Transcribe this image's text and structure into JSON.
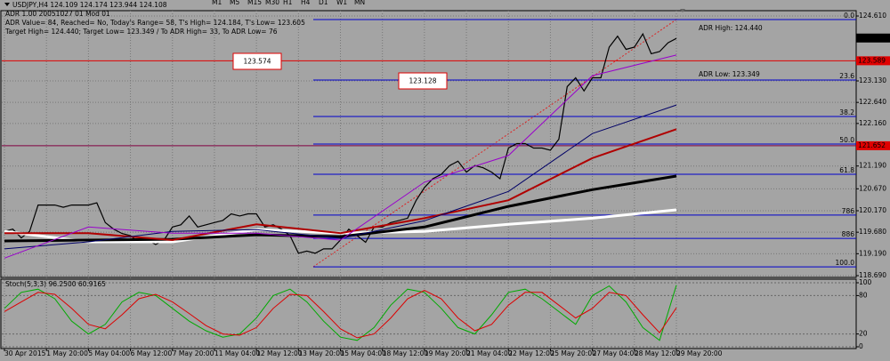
{
  "toolbar": [
    "M1",
    "M5",
    "M15",
    "M30",
    "H1",
    "H4",
    "D1",
    "W1",
    "MN"
  ],
  "chart_data": [
    {
      "type": "line",
      "title": "USDJPY,H4  124.109 124.174 123.944 124.108",
      "annotations": [
        "ADR 1.00 20051027 01 Mod 01",
        "ADR Value= 84, Reached= No, Today's Range= 58, T's High= 124.184, T's Low= 123.605",
        "Target High= 124.440; Target Low= 123.349 / To ADR High= 33, To ADR Low= 76"
      ],
      "adr_labels": [
        "ADR High: 124.440",
        "ADR Low: 123.349"
      ],
      "xlim": [
        0,
        80
      ],
      "xticks": [
        {
          "value": 0,
          "label": "30 Apr 2015"
        },
        {
          "value": 5,
          "label": "1 May 20:00"
        },
        {
          "value": 10,
          "label": "5 May 04:00"
        },
        {
          "value": 15,
          "label": "6 May 12:00"
        },
        {
          "value": 20,
          "label": "7 May 20:00"
        },
        {
          "value": 25,
          "label": "11 May 04:00"
        },
        {
          "value": 30,
          "label": "12 May 12:00"
        },
        {
          "value": 35,
          "label": "13 May 20:00"
        },
        {
          "value": 40,
          "label": "15 May 04:00"
        },
        {
          "value": 45,
          "label": "18 May 12:00"
        },
        {
          "value": 50,
          "label": "19 May 20:00"
        },
        {
          "value": 55,
          "label": "21 May 04:00"
        },
        {
          "value": 60,
          "label": "22 May 12:00"
        },
        {
          "value": 65,
          "label": "25 May 20:00"
        },
        {
          "value": 70,
          "label": "27 May 04:00"
        },
        {
          "value": 75,
          "label": "28 May 12:00"
        },
        {
          "value": 80,
          "label": "29 May 20:00"
        }
      ],
      "ylim": [
        118.69,
        124.61
      ],
      "yticks": [
        {
          "value": 124.61,
          "label": "124.610"
        },
        {
          "value": 123.13,
          "label": "123.130"
        },
        {
          "value": 122.64,
          "label": "122.640"
        },
        {
          "value": 122.16,
          "label": "122.160"
        },
        {
          "value": 121.19,
          "label": "121.190"
        },
        {
          "value": 120.67,
          "label": "120.670"
        },
        {
          "value": 120.17,
          "label": "120.170"
        },
        {
          "value": 119.68,
          "label": "119.680"
        },
        {
          "value": 119.19,
          "label": "119.190"
        },
        {
          "value": 118.69,
          "label": "118.690"
        }
      ],
      "grid": true,
      "series": [
        {
          "color": "#000000",
          "width": 1.2,
          "x": [
            0,
            1,
            2,
            3,
            4,
            5,
            6,
            7,
            8,
            9,
            10,
            11,
            12,
            13,
            14,
            15,
            16,
            17,
            18,
            19,
            20,
            21,
            22,
            23,
            24,
            25,
            26,
            27,
            28,
            29,
            30,
            31,
            32,
            33,
            34,
            35,
            36,
            37,
            38,
            39,
            40,
            41,
            42,
            43,
            44,
            45,
            46,
            47,
            48,
            49,
            50,
            51,
            52,
            53,
            54,
            55,
            56,
            57,
            58,
            59,
            60,
            61,
            62,
            63,
            64,
            65,
            66,
            67,
            68,
            69,
            70,
            71,
            72,
            73,
            74,
            75,
            76,
            77,
            78,
            79,
            80
          ],
          "values": [
            119.7,
            119.75,
            119.55,
            119.7,
            120.3,
            120.3,
            120.3,
            120.25,
            120.3,
            120.3,
            120.3,
            120.35,
            119.9,
            119.75,
            119.65,
            119.6,
            119.45,
            119.5,
            119.4,
            119.5,
            119.8,
            119.85,
            120.05,
            119.8,
            119.85,
            119.9,
            119.95,
            120.1,
            120.05,
            120.1,
            120.1,
            119.8,
            119.85,
            119.75,
            119.6,
            119.2,
            119.25,
            119.2,
            119.3,
            119.3,
            119.5,
            119.75,
            119.6,
            119.45,
            119.8,
            119.8,
            119.9,
            119.95,
            120.0,
            120.4,
            120.7,
            120.9,
            121.0,
            121.2,
            121.3,
            121.05,
            121.2,
            121.15,
            121.05,
            120.9,
            121.6,
            121.7,
            121.7,
            121.6,
            121.6,
            121.55,
            121.8,
            123.0,
            123.2,
            122.9,
            123.2,
            123.2,
            123.9,
            124.15,
            123.85,
            123.9,
            124.2,
            123.75,
            123.8,
            124.0,
            124.1
          ]
        },
        {
          "color": "#ffffff",
          "width": 3,
          "x": [
            0,
            10,
            20,
            30,
            40,
            50,
            60,
            70,
            80
          ],
          "values": [
            119.7,
            119.46,
            119.46,
            119.74,
            119.66,
            119.7,
            119.86,
            120.0,
            120.19
          ]
        },
        {
          "color": "#000000",
          "width": 3,
          "x": [
            0,
            10,
            20,
            30,
            40,
            50,
            60,
            70,
            80
          ],
          "values": [
            119.48,
            119.5,
            119.52,
            119.62,
            119.58,
            119.8,
            120.27,
            120.65,
            120.96
          ]
        },
        {
          "color": "#b00000",
          "width": 2,
          "x": [
            0,
            10,
            20,
            30,
            40,
            50,
            60,
            70,
            80
          ],
          "values": [
            119.66,
            119.66,
            119.5,
            119.86,
            119.66,
            120.0,
            120.41,
            121.37,
            122.03
          ]
        },
        {
          "color": "#000066",
          "width": 1,
          "x": [
            0,
            10,
            20,
            30,
            40,
            50,
            60,
            70,
            80
          ],
          "values": [
            119.3,
            119.46,
            119.7,
            119.74,
            119.54,
            119.94,
            120.61,
            121.93,
            122.58
          ]
        },
        {
          "color": "#9900cc",
          "width": 1,
          "x": [
            0,
            10,
            20,
            30,
            40,
            50,
            60,
            70,
            80
          ],
          "values": [
            119.09,
            119.8,
            119.66,
            119.66,
            119.5,
            120.82,
            121.43,
            123.25,
            123.72
          ]
        }
      ],
      "fib": {
        "color": "#0000cc",
        "levels": [
          "0.0",
          "23.6",
          "38.2",
          "50.0",
          "61.8",
          "786",
          "886",
          "100.0"
        ],
        "prices": [
          124.53,
          123.15,
          122.32,
          121.69,
          121.0,
          120.07,
          119.54,
          118.89
        ]
      },
      "current_price": 124.108,
      "red_line": 123.589,
      "purple_line": 121.652,
      "value_boxes": [
        123.574,
        123.128
      ]
    },
    {
      "type": "line",
      "title": "Stoch(5,3,3) 96.2500 60.9165",
      "xlim": [
        0,
        80
      ],
      "ylim": [
        0,
        100
      ],
      "yticks": [
        0,
        20,
        80,
        100
      ],
      "series": [
        {
          "color": "#00aa00",
          "width": 1,
          "x": [
            0,
            2,
            4,
            6,
            8,
            10,
            12,
            14,
            16,
            18,
            20,
            22,
            24,
            26,
            28,
            30,
            32,
            34,
            36,
            38,
            40,
            42,
            44,
            46,
            48,
            50,
            52,
            54,
            56,
            58,
            60,
            62,
            64,
            66,
            68,
            70,
            72,
            74,
            76,
            78,
            80
          ],
          "values": [
            60,
            85,
            90,
            75,
            40,
            20,
            35,
            70,
            85,
            80,
            60,
            40,
            25,
            15,
            20,
            45,
            80,
            90,
            70,
            40,
            15,
            10,
            30,
            65,
            90,
            85,
            60,
            30,
            20,
            50,
            85,
            90,
            75,
            55,
            35,
            80,
            95,
            70,
            30,
            10,
            96.25
          ]
        },
        {
          "color": "#dd0000",
          "width": 1,
          "x": [
            0,
            2,
            4,
            6,
            8,
            10,
            12,
            14,
            16,
            18,
            20,
            22,
            24,
            26,
            28,
            30,
            32,
            34,
            36,
            38,
            40,
            42,
            44,
            46,
            48,
            50,
            52,
            54,
            56,
            58,
            60,
            62,
            64,
            66,
            68,
            70,
            72,
            74,
            76,
            78,
            80
          ],
          "values": [
            55,
            70,
            85,
            82,
            60,
            35,
            28,
            50,
            75,
            82,
            70,
            52,
            33,
            20,
            18,
            30,
            60,
            82,
            80,
            55,
            28,
            14,
            20,
            45,
            75,
            88,
            75,
            45,
            25,
            35,
            65,
            85,
            85,
            65,
            45,
            60,
            85,
            80,
            50,
            22,
            60.9165
          ]
        }
      ]
    }
  ]
}
